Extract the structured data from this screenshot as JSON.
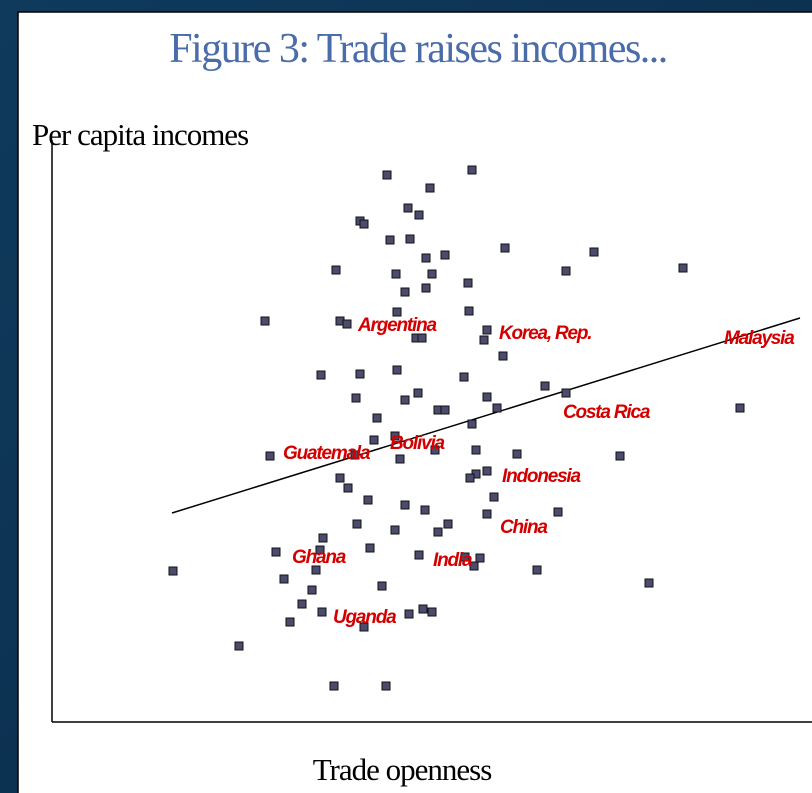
{
  "chart_data": {
    "type": "scatter",
    "title": "Figure 3: Trade raises incomes...",
    "y_label": "Per capita incomes",
    "x_label": "Trade openness",
    "xlim": [
      0,
      760
    ],
    "ylim": [
      0,
      582
    ],
    "color": "#4b4b6e",
    "x": [
      420,
      335,
      378,
      356,
      367,
      308,
      312,
      338,
      358,
      453,
      542,
      374,
      393,
      284,
      344,
      380,
      416,
      514,
      631,
      353,
      374,
      345,
      417,
      213,
      288,
      295,
      364,
      370,
      435,
      432,
      451,
      269,
      308,
      345,
      412,
      493,
      514,
      304,
      353,
      366,
      435,
      445,
      386,
      393,
      325,
      420,
      688,
      343,
      322,
      383,
      424,
      218,
      303,
      348,
      465,
      568,
      424,
      435,
      418,
      288,
      296,
      442,
      316,
      353,
      373,
      435,
      506,
      305,
      343,
      386,
      396,
      271,
      318,
      224,
      268,
      367,
      413,
      428,
      422,
      264,
      121,
      485,
      232,
      597,
      330,
      260,
      250,
      270,
      357,
      371,
      380,
      238,
      312,
      187,
      282,
      334
    ],
    "y": [
      552,
      547,
      534,
      514,
      507,
      501,
      498,
      482,
      483,
      474,
      470,
      464,
      467,
      452,
      448,
      448,
      439,
      451,
      454,
      430,
      434,
      410,
      411,
      401,
      401,
      398,
      384,
      384,
      392,
      382,
      366,
      347,
      348,
      352,
      345,
      336,
      329,
      324,
      322,
      329,
      325,
      314,
      312,
      312,
      304,
      298,
      314,
      286,
      282,
      272,
      272,
      266,
      267,
      263,
      268,
      266,
      248,
      251,
      244,
      244,
      234,
      225,
      222,
      217,
      212,
      208,
      210,
      198,
      192,
      190,
      198,
      184,
      174,
      170,
      172,
      167,
      165,
      164,
      156,
      152,
      151,
      152,
      143,
      139,
      136,
      132,
      118,
      110,
      108,
      113,
      110,
      100,
      95,
      76,
      36,
      36
    ],
    "trend": {
      "x": [
        120,
        748
      ],
      "y": [
        209,
        404
      ],
      "color": "#000000"
    },
    "annotations": [
      {
        "text": "Argentina",
        "x": 306,
        "y": 396,
        "color": "#d40000"
      },
      {
        "text": "Korea, Rep.",
        "x": 447,
        "y": 388,
        "color": "#d40000"
      },
      {
        "text": "Malaysia",
        "x": 672,
        "y": 383,
        "color": "#d40000"
      },
      {
        "text": "Costa Rica",
        "x": 511,
        "y": 309,
        "color": "#d40000"
      },
      {
        "text": "Guatemala",
        "x": 231,
        "y": 268,
        "color": "#d40000"
      },
      {
        "text": "Bolivia",
        "x": 338,
        "y": 278,
        "color": "#d40000"
      },
      {
        "text": "Indonesia",
        "x": 450,
        "y": 245,
        "color": "#d40000"
      },
      {
        "text": "China",
        "x": 448,
        "y": 194,
        "color": "#d40000"
      },
      {
        "text": "Ghana",
        "x": 240,
        "y": 164,
        "color": "#d40000"
      },
      {
        "text": "India",
        "x": 381,
        "y": 161,
        "color": "#d40000"
      },
      {
        "text": "Uganda",
        "x": 281,
        "y": 104,
        "color": "#d40000"
      }
    ]
  }
}
